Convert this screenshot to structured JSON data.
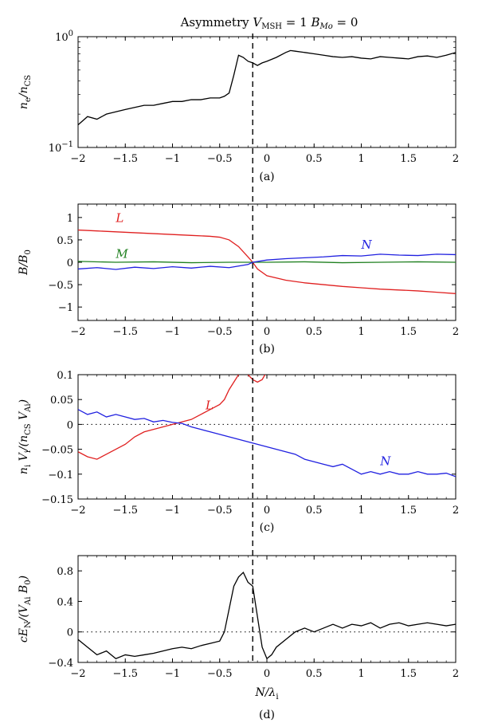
{
  "title": "Asymmetry V_MSH = 1 B_Mo = 0",
  "chart_data": [
    {
      "id": "a",
      "type": "line",
      "panel_label": "(a)",
      "ylabel": "n_e/n_CS",
      "yscale": "log",
      "xlim": [
        -2,
        2
      ],
      "ylim": [
        0.1,
        1.0
      ],
      "xticks": [
        "−2",
        "−1.5",
        "−1",
        "−0.5",
        "0",
        "0.5",
        "1",
        "1.5",
        "2"
      ],
      "yticks": [
        "10^{−1}",
        "10^{0}"
      ],
      "dashed_x": -0.15,
      "series": [
        {
          "color": "#000000",
          "x": [
            -2.0,
            -1.9,
            -1.8,
            -1.7,
            -1.6,
            -1.5,
            -1.4,
            -1.3,
            -1.2,
            -1.1,
            -1.0,
            -0.9,
            -0.8,
            -0.7,
            -0.6,
            -0.5,
            -0.45,
            -0.4,
            -0.35,
            -0.3,
            -0.25,
            -0.2,
            -0.15,
            -0.1,
            -0.05,
            0.0,
            0.1,
            0.2,
            0.25,
            0.3,
            0.4,
            0.5,
            0.6,
            0.7,
            0.8,
            0.9,
            1.0,
            1.1,
            1.2,
            1.3,
            1.4,
            1.5,
            1.6,
            1.7,
            1.8,
            1.9,
            2.0
          ],
          "y": [
            0.16,
            0.19,
            0.18,
            0.2,
            0.21,
            0.22,
            0.23,
            0.24,
            0.24,
            0.25,
            0.26,
            0.26,
            0.27,
            0.27,
            0.28,
            0.28,
            0.29,
            0.31,
            0.45,
            0.68,
            0.65,
            0.6,
            0.58,
            0.55,
            0.58,
            0.6,
            0.65,
            0.72,
            0.75,
            0.74,
            0.72,
            0.7,
            0.68,
            0.66,
            0.65,
            0.66,
            0.64,
            0.63,
            0.66,
            0.65,
            0.64,
            0.63,
            0.66,
            0.67,
            0.65,
            0.68,
            0.72
          ]
        }
      ]
    },
    {
      "id": "b",
      "type": "line",
      "panel_label": "(b)",
      "ylabel": "B/B_0",
      "xlim": [
        -2,
        2
      ],
      "ylim": [
        -1.3,
        1.3
      ],
      "xticks": [
        "−2",
        "−1.5",
        "−1",
        "−0.5",
        "0",
        "0.5",
        "1",
        "1.5",
        "2"
      ],
      "yticks": [
        "−1",
        "−0.5",
        "0",
        "0.5",
        "1"
      ],
      "yticks_values": [
        -1,
        -0.5,
        0,
        0.5,
        1
      ],
      "dashed_x": -0.15,
      "series": [
        {
          "name": "L",
          "color": "#e02020",
          "x": [
            -2.0,
            -1.8,
            -1.6,
            -1.4,
            -1.2,
            -1.0,
            -0.8,
            -0.6,
            -0.5,
            -0.4,
            -0.3,
            -0.2,
            -0.15,
            -0.1,
            0.0,
            0.2,
            0.4,
            0.6,
            0.8,
            1.0,
            1.2,
            1.4,
            1.6,
            1.8,
            2.0
          ],
          "y": [
            0.72,
            0.7,
            0.68,
            0.66,
            0.64,
            0.62,
            0.6,
            0.58,
            0.56,
            0.5,
            0.35,
            0.12,
            0.0,
            -0.15,
            -0.3,
            -0.4,
            -0.46,
            -0.5,
            -0.54,
            -0.57,
            -0.6,
            -0.62,
            -0.64,
            -0.67,
            -0.7
          ]
        },
        {
          "name": "M",
          "color": "#208020",
          "x": [
            -2.0,
            -1.6,
            -1.2,
            -0.8,
            -0.4,
            0.0,
            0.4,
            0.8,
            1.2,
            1.6,
            2.0
          ],
          "y": [
            0.02,
            0.0,
            0.01,
            -0.01,
            0.0,
            0.0,
            0.01,
            -0.01,
            0.0,
            0.01,
            0.0
          ]
        },
        {
          "name": "N",
          "color": "#2020e0",
          "x": [
            -2.0,
            -1.8,
            -1.6,
            -1.4,
            -1.2,
            -1.0,
            -0.8,
            -0.6,
            -0.4,
            -0.2,
            -0.15,
            0.0,
            0.2,
            0.4,
            0.6,
            0.8,
            1.0,
            1.2,
            1.4,
            1.6,
            1.8,
            2.0
          ],
          "y": [
            -0.15,
            -0.12,
            -0.16,
            -0.11,
            -0.14,
            -0.1,
            -0.13,
            -0.09,
            -0.12,
            -0.05,
            0.0,
            0.05,
            0.08,
            0.1,
            0.12,
            0.15,
            0.14,
            0.18,
            0.16,
            0.15,
            0.18,
            0.17
          ]
        }
      ]
    },
    {
      "id": "c",
      "type": "line",
      "panel_label": "(c)",
      "ylabel": "n_i V_i/(n_CS V_Ai)",
      "xlim": [
        -2,
        2
      ],
      "ylim": [
        -0.15,
        0.1
      ],
      "xticks": [
        "−2",
        "−1.5",
        "−1",
        "−0.5",
        "0",
        "0.5",
        "1",
        "1.5",
        "2"
      ],
      "yticks": [
        "−0.15",
        "−0.1",
        "−0.05",
        "0",
        "0.05",
        "0.1"
      ],
      "yticks_values": [
        -0.15,
        -0.1,
        -0.05,
        0,
        0.05,
        0.1
      ],
      "dashed_x": -0.15,
      "dotted_y": 0,
      "series": [
        {
          "name": "L",
          "color": "#e02020",
          "x": [
            -2.0,
            -1.9,
            -1.8,
            -1.7,
            -1.6,
            -1.5,
            -1.4,
            -1.3,
            -1.2,
            -1.1,
            -1.0,
            -0.9,
            -0.8,
            -0.7,
            -0.6,
            -0.5,
            -0.45,
            -0.4,
            -0.35,
            -0.3
          ],
          "y": [
            -0.055,
            -0.065,
            -0.07,
            -0.06,
            -0.05,
            -0.04,
            -0.025,
            -0.015,
            -0.01,
            -0.005,
            0.0,
            0.005,
            0.01,
            0.02,
            0.03,
            0.04,
            0.05,
            0.07,
            0.085,
            0.1
          ]
        },
        {
          "name": "L",
          "color": "#e02020",
          "x": [
            -0.2,
            -0.15,
            -0.1,
            -0.05,
            -0.02
          ],
          "y": [
            0.1,
            0.09,
            0.085,
            0.09,
            0.1
          ]
        },
        {
          "name": "N",
          "color": "#2020e0",
          "x": [
            -2.0,
            -1.9,
            -1.8,
            -1.7,
            -1.6,
            -1.5,
            -1.4,
            -1.3,
            -1.2,
            -1.1,
            -1.0,
            -0.9,
            -0.8,
            -0.7,
            -0.6,
            -0.5,
            -0.4,
            -0.3,
            -0.2,
            -0.1,
            0.0,
            0.1,
            0.2,
            0.3,
            0.4,
            0.5,
            0.6,
            0.7,
            0.8,
            0.9,
            1.0,
            1.1,
            1.2,
            1.3,
            1.4,
            1.5,
            1.6,
            1.7,
            1.8,
            1.9,
            2.0
          ],
          "y": [
            0.03,
            0.02,
            0.025,
            0.015,
            0.02,
            0.015,
            0.01,
            0.012,
            0.005,
            0.008,
            0.004,
            0.002,
            -0.005,
            -0.01,
            -0.015,
            -0.02,
            -0.025,
            -0.03,
            -0.035,
            -0.04,
            -0.045,
            -0.05,
            -0.055,
            -0.06,
            -0.07,
            -0.075,
            -0.08,
            -0.085,
            -0.08,
            -0.09,
            -0.1,
            -0.095,
            -0.1,
            -0.095,
            -0.1,
            -0.1,
            -0.095,
            -0.1,
            -0.1,
            -0.098,
            -0.105
          ]
        }
      ]
    },
    {
      "id": "d",
      "type": "line",
      "panel_label": "(d)",
      "ylabel": "cE_N/(V_Ai B_0)",
      "xlabel": "N/λ_i",
      "xlim": [
        -2,
        2
      ],
      "ylim": [
        -0.4,
        1.0
      ],
      "xticks": [
        "−2",
        "−1.5",
        "−1",
        "−0.5",
        "0",
        "0.5",
        "1",
        "1.5",
        "2"
      ],
      "yticks": [
        "−0.4",
        "0",
        "0.4",
        "0.8"
      ],
      "yticks_values": [
        -0.4,
        0,
        0.4,
        0.8
      ],
      "dashed_x": -0.15,
      "dotted_y": 0,
      "series": [
        {
          "color": "#000000",
          "x": [
            -2.0,
            -1.9,
            -1.8,
            -1.7,
            -1.6,
            -1.5,
            -1.4,
            -1.3,
            -1.2,
            -1.1,
            -1.0,
            -0.9,
            -0.8,
            -0.7,
            -0.6,
            -0.5,
            -0.45,
            -0.4,
            -0.35,
            -0.3,
            -0.25,
            -0.2,
            -0.15,
            -0.1,
            -0.05,
            0.0,
            0.05,
            0.1,
            0.2,
            0.3,
            0.4,
            0.5,
            0.6,
            0.7,
            0.8,
            0.9,
            1.0,
            1.1,
            1.2,
            1.3,
            1.4,
            1.5,
            1.6,
            1.7,
            1.8,
            1.9,
            2.0
          ],
          "y": [
            -0.1,
            -0.2,
            -0.3,
            -0.25,
            -0.35,
            -0.3,
            -0.32,
            -0.3,
            -0.28,
            -0.25,
            -0.22,
            -0.2,
            -0.22,
            -0.18,
            -0.15,
            -0.12,
            0.0,
            0.3,
            0.6,
            0.72,
            0.78,
            0.65,
            0.6,
            0.2,
            -0.2,
            -0.35,
            -0.3,
            -0.2,
            -0.1,
            0.0,
            0.05,
            0.0,
            0.05,
            0.1,
            0.05,
            0.1,
            0.08,
            0.12,
            0.05,
            0.1,
            0.12,
            0.08,
            0.1,
            0.12,
            0.1,
            0.08,
            0.1
          ]
        }
      ]
    }
  ]
}
